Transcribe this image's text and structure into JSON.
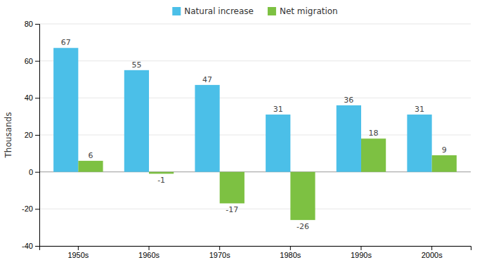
{
  "chart_data": {
    "type": "bar",
    "categories": [
      "1950s",
      "1960s",
      "1970s",
      "1980s",
      "1990s",
      "2000s"
    ],
    "series": [
      {
        "name": "Natural increase",
        "color": "#4BBFE8",
        "values": [
          67,
          55,
          47,
          31,
          36,
          31
        ]
      },
      {
        "name": "Net migration",
        "color": "#7DC142",
        "values": [
          6,
          -1,
          -17,
          -26,
          18,
          9
        ]
      }
    ],
    "ylabel": "Thousands",
    "ylim": [
      -40,
      80
    ],
    "yticks": [
      -40,
      -20,
      0,
      20,
      40,
      60,
      80
    ],
    "grid": true,
    "legend": "top",
    "data_labels": true
  }
}
